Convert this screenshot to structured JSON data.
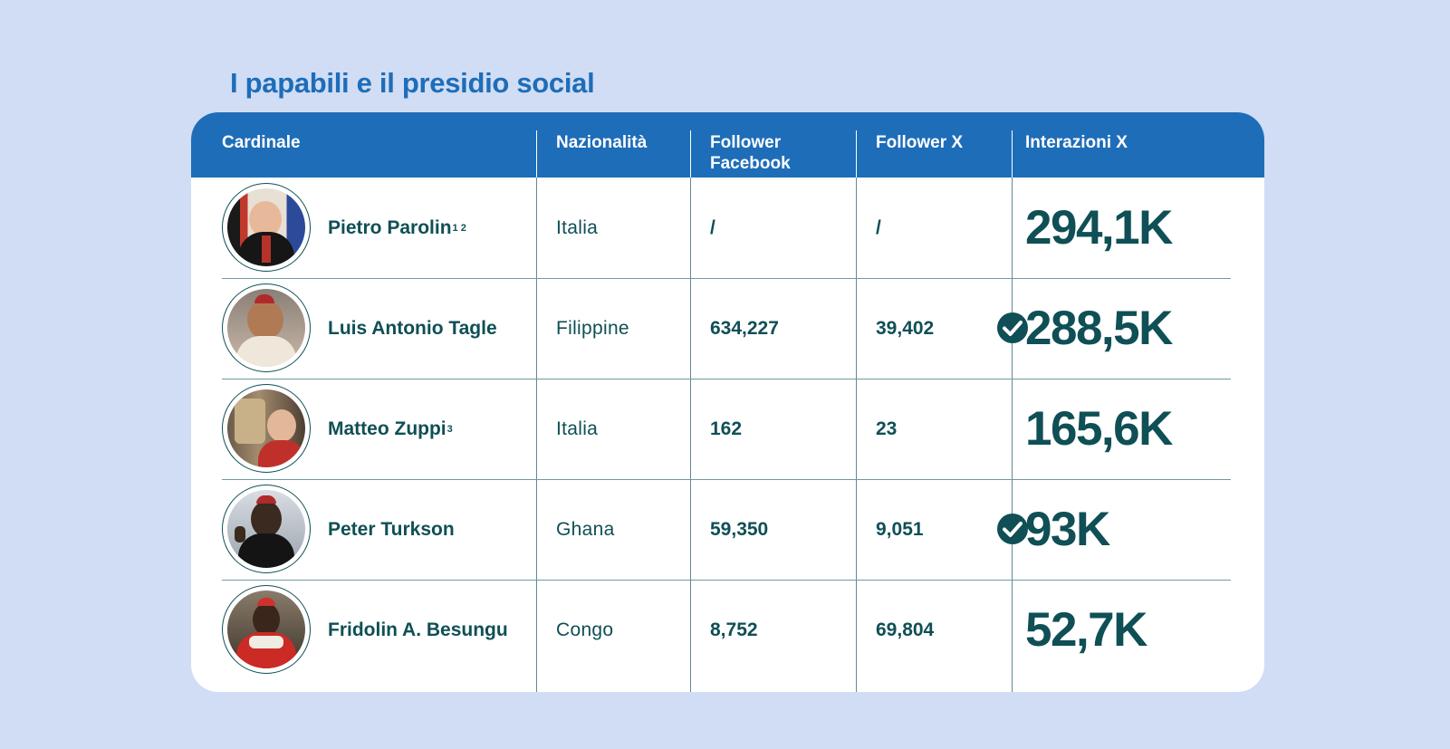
{
  "title": "I papabili e il presidio social",
  "headers": {
    "cardinale": "Cardinale",
    "nazionalita": "Nazionalità",
    "follower_facebook_1": "Follower",
    "follower_facebook_2": "Facebook",
    "follower_x": "Follower X",
    "interazioni_x": "Interazioni X"
  },
  "icons": {
    "verified": "check-circle-icon",
    "avatar": "portrait-photo"
  },
  "colors": {
    "background": "#d0ddf4",
    "header": "#1e6db8",
    "text": "#0f4f55"
  },
  "rows": [
    {
      "name": "Pietro Parolin",
      "note": "1 2",
      "nationality": "Italia",
      "facebook": "/",
      "facebook_verified": false,
      "x_followers": "/",
      "x_interactions": "294,1K"
    },
    {
      "name": "Luis Antonio Tagle",
      "note": "",
      "nationality": "Filippine",
      "facebook": "634,227",
      "facebook_verified": true,
      "x_followers": "39,402",
      "x_interactions": "288,5K"
    },
    {
      "name": "Matteo Zuppi",
      "note": "3",
      "nationality": "Italia",
      "facebook": "162",
      "facebook_verified": false,
      "x_followers": "23",
      "x_interactions": "165,6K"
    },
    {
      "name": "Peter Turkson",
      "note": "",
      "nationality": "Ghana",
      "facebook": "59,350",
      "facebook_verified": true,
      "x_followers": "9,051",
      "x_interactions": "93K"
    },
    {
      "name": "Fridolin A. Besungu",
      "note": "",
      "nationality": "Congo",
      "facebook": "8,752",
      "facebook_verified": false,
      "x_followers": "69,804",
      "x_interactions": "52,7K"
    }
  ]
}
